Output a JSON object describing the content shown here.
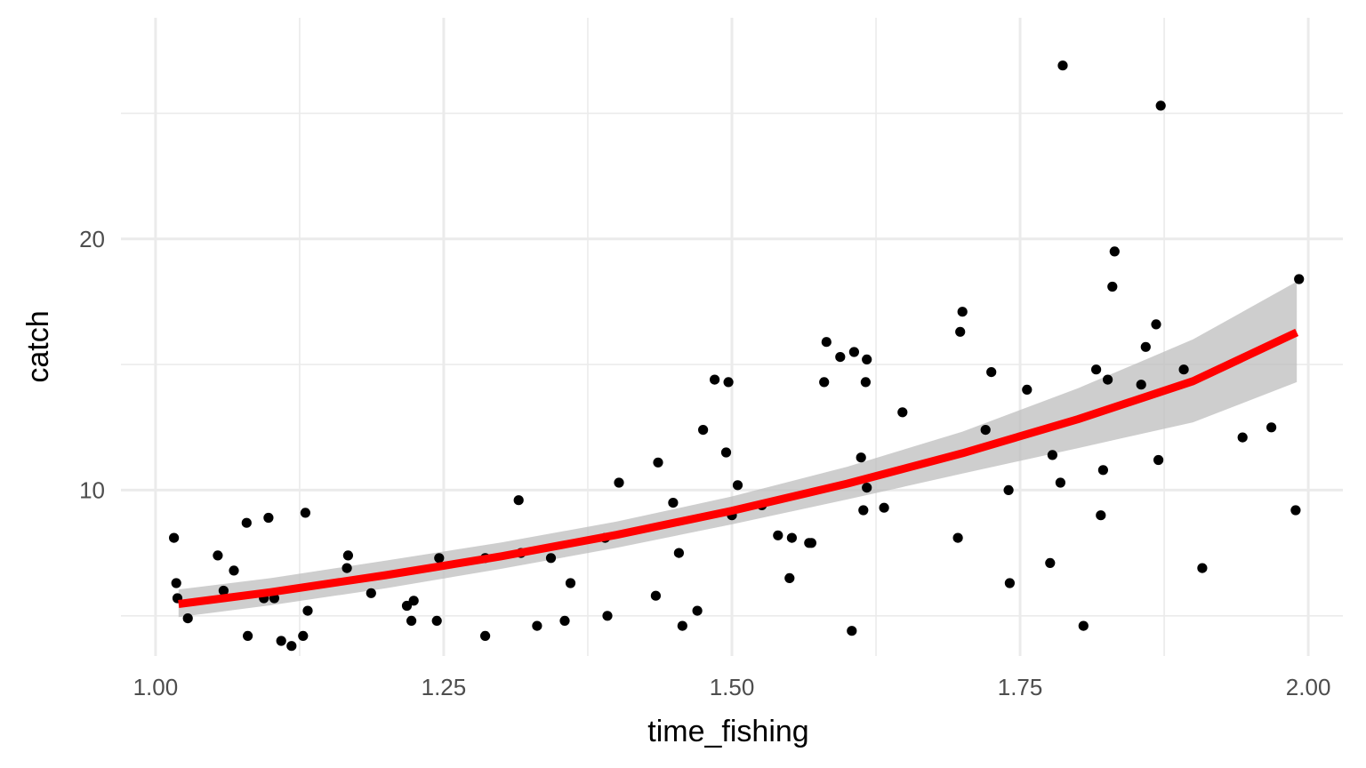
{
  "chart_data": {
    "type": "scatter",
    "title": "",
    "xlabel": "time_fishing",
    "ylabel": "catch",
    "xlim": [
      0.97,
      2.03
    ],
    "ylim": [
      3.4,
      28.8
    ],
    "x_ticks": [
      {
        "value": 1.0,
        "label": "1.00"
      },
      {
        "value": 1.25,
        "label": "1.25"
      },
      {
        "value": 1.5,
        "label": "1.50"
      },
      {
        "value": 1.75,
        "label": "1.75"
      },
      {
        "value": 2.0,
        "label": "2.00"
      }
    ],
    "x_minor_ticks": [
      1.125,
      1.375,
      1.625,
      1.875
    ],
    "y_ticks": [
      {
        "value": 10,
        "label": "10"
      },
      {
        "value": 20,
        "label": "20"
      }
    ],
    "y_minor_ticks": [
      5,
      15,
      25
    ],
    "grid": true,
    "legend": "none",
    "colors": {
      "points": "#000000",
      "fit_line": "#ff0000",
      "ribbon": "#bebebe",
      "grid": "#ebebeb"
    },
    "series": [
      {
        "kind": "points",
        "points": [
          [
            1.016,
            8.1
          ],
          [
            1.018,
            6.3
          ],
          [
            1.019,
            5.7
          ],
          [
            1.028,
            4.9
          ],
          [
            1.054,
            7.4
          ],
          [
            1.059,
            6.0
          ],
          [
            1.068,
            6.8
          ],
          [
            1.079,
            8.7
          ],
          [
            1.08,
            4.2
          ],
          [
            1.094,
            5.7
          ],
          [
            1.098,
            8.9
          ],
          [
            1.103,
            5.7
          ],
          [
            1.109,
            4.0
          ],
          [
            1.118,
            3.8
          ],
          [
            1.128,
            4.2
          ],
          [
            1.13,
            9.1
          ],
          [
            1.132,
            5.2
          ],
          [
            1.166,
            6.9
          ],
          [
            1.167,
            7.4
          ],
          [
            1.187,
            5.9
          ],
          [
            1.218,
            5.4
          ],
          [
            1.222,
            4.8
          ],
          [
            1.224,
            5.6
          ],
          [
            1.244,
            4.8
          ],
          [
            1.246,
            7.3
          ],
          [
            1.286,
            4.2
          ],
          [
            1.286,
            7.3
          ],
          [
            1.315,
            9.6
          ],
          [
            1.317,
            7.5
          ],
          [
            1.331,
            4.6
          ],
          [
            1.343,
            7.3
          ],
          [
            1.355,
            4.8
          ],
          [
            1.36,
            6.3
          ],
          [
            1.39,
            8.1
          ],
          [
            1.392,
            5.0
          ],
          [
            1.402,
            10.3
          ],
          [
            1.434,
            5.8
          ],
          [
            1.436,
            11.1
          ],
          [
            1.449,
            9.5
          ],
          [
            1.454,
            7.5
          ],
          [
            1.457,
            4.6
          ],
          [
            1.47,
            5.2
          ],
          [
            1.475,
            12.4
          ],
          [
            1.485,
            14.4
          ],
          [
            1.495,
            11.5
          ],
          [
            1.497,
            14.3
          ],
          [
            1.5,
            9.0
          ],
          [
            1.505,
            10.2
          ],
          [
            1.526,
            9.4
          ],
          [
            1.54,
            8.2
          ],
          [
            1.55,
            6.5
          ],
          [
            1.552,
            8.1
          ],
          [
            1.567,
            7.9
          ],
          [
            1.569,
            7.9
          ],
          [
            1.58,
            14.3
          ],
          [
            1.582,
            15.9
          ],
          [
            1.594,
            15.3
          ],
          [
            1.604,
            4.4
          ],
          [
            1.606,
            15.5
          ],
          [
            1.612,
            11.3
          ],
          [
            1.614,
            9.2
          ],
          [
            1.616,
            14.3
          ],
          [
            1.617,
            15.2
          ],
          [
            1.617,
            10.1
          ],
          [
            1.632,
            9.3
          ],
          [
            1.648,
            13.1
          ],
          [
            1.696,
            8.1
          ],
          [
            1.698,
            16.3
          ],
          [
            1.7,
            17.1
          ],
          [
            1.72,
            12.4
          ],
          [
            1.725,
            14.7
          ],
          [
            1.74,
            10.0
          ],
          [
            1.741,
            6.3
          ],
          [
            1.756,
            14.0
          ],
          [
            1.776,
            7.1
          ],
          [
            1.778,
            11.4
          ],
          [
            1.785,
            10.3
          ],
          [
            1.787,
            26.9
          ],
          [
            1.805,
            4.6
          ],
          [
            1.816,
            14.8
          ],
          [
            1.82,
            9.0
          ],
          [
            1.822,
            10.8
          ],
          [
            1.826,
            14.4
          ],
          [
            1.83,
            18.1
          ],
          [
            1.832,
            19.5
          ],
          [
            1.855,
            14.2
          ],
          [
            1.859,
            15.7
          ],
          [
            1.868,
            16.6
          ],
          [
            1.87,
            11.2
          ],
          [
            1.872,
            25.3
          ],
          [
            1.892,
            14.8
          ],
          [
            1.908,
            6.9
          ],
          [
            1.943,
            12.1
          ],
          [
            1.968,
            12.5
          ],
          [
            1.989,
            9.2
          ],
          [
            1.992,
            18.4
          ]
        ]
      },
      {
        "kind": "fit",
        "x": [
          1.02,
          1.1,
          1.2,
          1.3,
          1.4,
          1.5,
          1.6,
          1.7,
          1.8,
          1.9,
          1.99
        ],
        "y": [
          5.47,
          5.94,
          6.62,
          7.37,
          8.22,
          9.18,
          10.26,
          11.47,
          12.82,
          14.34,
          16.28
        ],
        "lower": [
          4.95,
          5.42,
          6.1,
          6.87,
          7.71,
          8.64,
          9.63,
          10.66,
          11.67,
          12.7,
          14.3
        ],
        "upper": [
          6.05,
          6.5,
          7.2,
          7.92,
          8.75,
          9.75,
          10.93,
          12.33,
          14.05,
          16.0,
          18.3
        ]
      }
    ]
  }
}
